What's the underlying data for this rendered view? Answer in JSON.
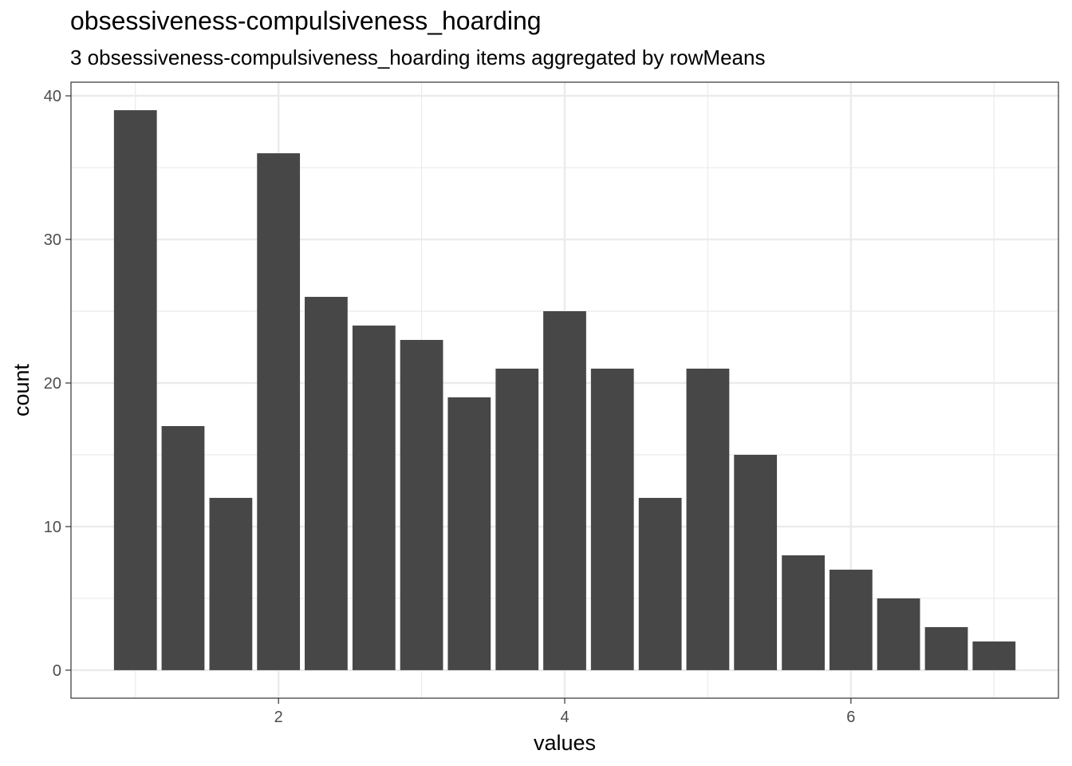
{
  "title": "obsessiveness-compulsiveness_hoarding",
  "subtitle": "3 obsessiveness-compulsiveness_hoarding items aggregated by rowMeans",
  "chart_data": {
    "type": "bar",
    "xlabel": "values",
    "ylabel": "count",
    "x": [
      1.0,
      1.333,
      1.667,
      2.0,
      2.333,
      2.667,
      3.0,
      3.333,
      3.667,
      4.0,
      4.333,
      4.667,
      5.0,
      5.333,
      5.667,
      6.0,
      6.333,
      6.667,
      7.0
    ],
    "values": [
      39,
      17,
      12,
      36,
      26,
      24,
      23,
      19,
      21,
      25,
      21,
      12,
      21,
      15,
      8,
      7,
      5,
      3,
      2
    ],
    "xlim": [
      0.55,
      7.45
    ],
    "ylim": [
      -1.95,
      40.95
    ],
    "xticks": [
      2,
      4,
      6
    ],
    "xtick_labels": [
      "2",
      "4",
      "6"
    ],
    "yticks": [
      0,
      10,
      20,
      30,
      40
    ],
    "ytick_labels": [
      "0",
      "10",
      "20",
      "30",
      "40"
    ],
    "bar_color": "#474747",
    "grid": true,
    "grid_color": "#ebebeb",
    "panel_border_color": "#333333"
  }
}
